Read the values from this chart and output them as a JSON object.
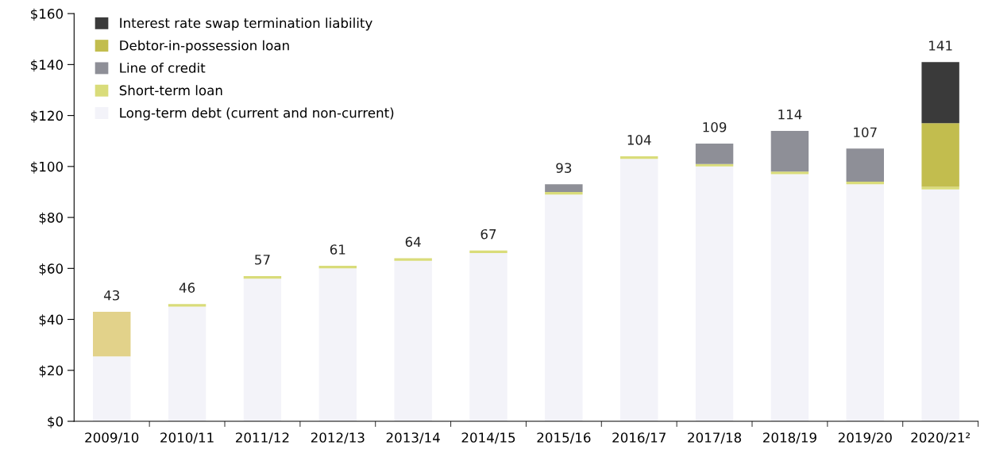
{
  "chart_data": {
    "type": "bar",
    "stacked": true,
    "categories": [
      "2009/10",
      "2010/11",
      "2011/12",
      "2012/13",
      "2013/14",
      "2014/15",
      "2015/16",
      "2016/17",
      "2017/18",
      "2018/19",
      "2019/20",
      "2020/21²"
    ],
    "series": [
      {
        "name": "Long-term debt (current and non-current)",
        "color": "#f3f3f9",
        "values": [
          25.5,
          45,
          56,
          60,
          63,
          66,
          89,
          103,
          100,
          97,
          93,
          91
        ]
      },
      {
        "name": "Short-term loan",
        "color": "#d9dc7a",
        "colors": [
          "#e2d28a",
          "#d9dc7a",
          "#d9dc7a",
          "#d9dc7a",
          "#d9dc7a",
          "#d9dc7a",
          "#d9dc7a",
          "#d9dc7a",
          "#d9dc7a",
          "#d9dc7a",
          "#d9dc7a",
          "#d9dc7a"
        ],
        "values": [
          17.5,
          1,
          1,
          1,
          1,
          1,
          1,
          1,
          1,
          1,
          1,
          1
        ]
      },
      {
        "name": "Line of credit",
        "color": "#8e8f97",
        "values": [
          null,
          null,
          null,
          null,
          null,
          null,
          3,
          null,
          8,
          16,
          13,
          null
        ]
      },
      {
        "name": "Debtor-in-possession loan",
        "color": "#c2bd4e",
        "values": [
          null,
          null,
          null,
          null,
          null,
          null,
          null,
          null,
          null,
          null,
          null,
          25
        ]
      },
      {
        "name": "Interest rate swap termination liability",
        "color": "#3a3a3a",
        "values": [
          null,
          null,
          null,
          null,
          null,
          null,
          null,
          null,
          null,
          null,
          null,
          24
        ]
      }
    ],
    "totals": [
      "43",
      "46",
      "57",
      "61",
      "64",
      "67",
      "93",
      "104",
      "109",
      "114",
      "107",
      "141"
    ],
    "ylim": [
      0,
      160
    ],
    "yticks": [
      {
        "value": 0,
        "label": "$0"
      },
      {
        "value": 20,
        "label": "$20"
      },
      {
        "value": 40,
        "label": "$40"
      },
      {
        "value": 60,
        "label": "$60"
      },
      {
        "value": 80,
        "label": "$80"
      },
      {
        "value": 100,
        "label": "$100"
      },
      {
        "value": 120,
        "label": "$120"
      },
      {
        "value": 140,
        "label": "$140"
      },
      {
        "value": 160,
        "label": "$160"
      }
    ],
    "legend": "top left",
    "grid": false
  }
}
